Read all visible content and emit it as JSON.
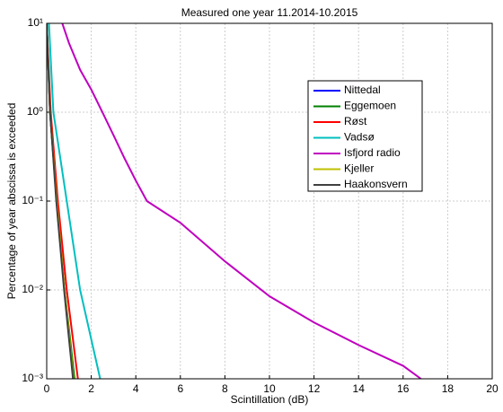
{
  "chart_data": {
    "type": "line",
    "title": "Measured one year 11.2014-10.2015",
    "x_label": "Scintillation (dB)",
    "y_label": "Percentage of year abscissa is exceeded",
    "xlim": [
      0,
      20
    ],
    "xticks": [
      0,
      2,
      4,
      6,
      8,
      10,
      12,
      14,
      16,
      18,
      20
    ],
    "ylim": [
      0.001,
      10
    ],
    "y_scale": "log",
    "yticks": [
      {
        "value": 0.001,
        "label": "10⁻³"
      },
      {
        "value": 0.01,
        "label": "10⁻²"
      },
      {
        "value": 0.1,
        "label": "10⁻¹"
      },
      {
        "value": 1,
        "label": "10⁰"
      },
      {
        "value": 10,
        "label": "10¹"
      }
    ],
    "grid": true,
    "legend_position": "upper right",
    "series": [
      {
        "name": "Nittedal",
        "color": "#0000ff",
        "x": [
          0,
          0.15,
          0.45,
          0.8,
          1.2
        ],
        "values": [
          10,
          1,
          0.1,
          0.01,
          0.001
        ]
      },
      {
        "name": "Eggemoen",
        "color": "#008000",
        "x": [
          0,
          0.15,
          0.45,
          0.8,
          1.25
        ],
        "values": [
          10,
          1,
          0.1,
          0.01,
          0.001
        ]
      },
      {
        "name": "Røst",
        "color": "#ff0000",
        "x": [
          0,
          0.18,
          0.5,
          0.9,
          1.4
        ],
        "values": [
          10,
          1,
          0.1,
          0.01,
          0.001
        ]
      },
      {
        "name": "Vadsø",
        "color": "#00bfbf",
        "x": [
          0.1,
          0.3,
          0.9,
          1.5,
          2.4
        ],
        "values": [
          10,
          1,
          0.1,
          0.01,
          0.001
        ]
      },
      {
        "name": "Isfjord radio",
        "color": "#bf00bf",
        "x": [
          0.7,
          1,
          1.5,
          2,
          2.5,
          3,
          3.5,
          4,
          4.5,
          6,
          8,
          10,
          12,
          14,
          16,
          16.8
        ],
        "values": [
          10,
          6,
          3,
          1.8,
          1,
          0.55,
          0.3,
          0.17,
          0.1,
          0.057,
          0.021,
          0.0085,
          0.0043,
          0.0024,
          0.0014,
          0.001
        ]
      },
      {
        "name": "Kjeller",
        "color": "#bfbf00",
        "x": [
          0,
          0.15,
          0.45,
          0.8,
          1.2
        ],
        "values": [
          10,
          1,
          0.1,
          0.01,
          0.001
        ]
      },
      {
        "name": "Haakonsvern",
        "color": "#404040",
        "x": [
          0,
          0.15,
          0.43,
          0.78,
          1.18
        ],
        "values": [
          10,
          1,
          0.1,
          0.01,
          0.001
        ]
      }
    ]
  }
}
